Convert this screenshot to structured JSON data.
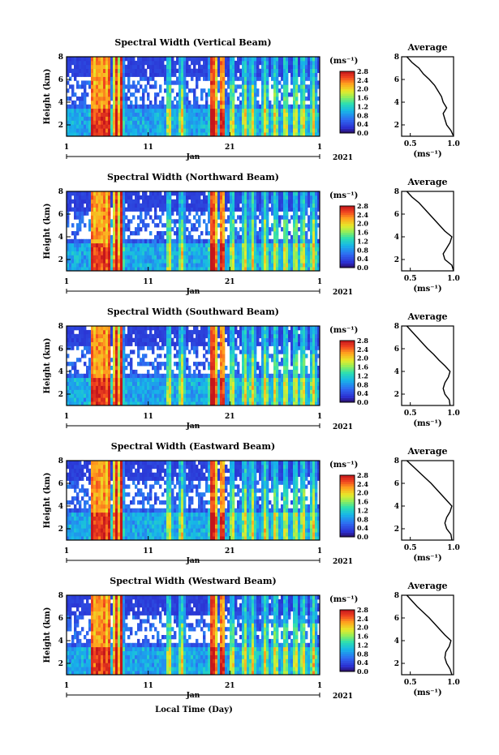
{
  "figure": {
    "xlabel": "Local Time (Day)"
  },
  "chart_data": [
    {
      "type": "heatmap",
      "title": "Spectral Width (Vertical Beam)",
      "ylabel": "Height (km)",
      "ylim": [
        1,
        8
      ],
      "yticks": [
        2,
        4,
        6,
        8
      ],
      "xticks": [
        "1",
        "11",
        "21",
        "1"
      ],
      "month_label": "Jan",
      "year_label": "2021",
      "colorbar": {
        "unit": "(ms⁻¹)",
        "min": 0.0,
        "max": 2.8,
        "ticks": [
          "0.0",
          "0.4",
          "0.8",
          "1.2",
          "1.6",
          "2.0",
          "2.4",
          "2.8"
        ]
      },
      "average": {
        "title": "Average",
        "xlim": [
          0.4,
          1.0
        ],
        "xticks": [
          "0.5",
          "1.0"
        ],
        "xlabel": "(ms⁻¹)",
        "yticks": [
          "2",
          "4",
          "6",
          "8"
        ],
        "heights": [
          1.0,
          1.5,
          2.0,
          2.5,
          3.0,
          3.5,
          4.0,
          4.5,
          5.0,
          5.5,
          6.0,
          6.5,
          7.0,
          7.5,
          8.0
        ],
        "values": [
          1.0,
          0.97,
          0.92,
          0.9,
          0.88,
          0.92,
          0.88,
          0.86,
          0.82,
          0.78,
          0.72,
          0.65,
          0.6,
          0.52,
          0.46
        ]
      }
    },
    {
      "type": "heatmap",
      "title": "Spectral Width (Northward Beam)",
      "ylabel": "Height (km)",
      "ylim": [
        1,
        8
      ],
      "yticks": [
        2,
        4,
        6,
        8
      ],
      "xticks": [
        "1",
        "11",
        "21",
        "1"
      ],
      "month_label": "Jan",
      "year_label": "2021",
      "colorbar": {
        "unit": "(ms⁻¹)",
        "min": 0.0,
        "max": 2.8,
        "ticks": [
          "0.0",
          "0.4",
          "0.8",
          "1.2",
          "1.6",
          "2.0",
          "2.4",
          "2.8"
        ]
      },
      "average": {
        "title": "Average",
        "xlim": [
          0.4,
          1.0
        ],
        "xticks": [
          "0.5",
          "1.0"
        ],
        "xlabel": "(ms⁻¹)",
        "yticks": [
          "2",
          "4",
          "6",
          "8"
        ],
        "heights": [
          1.0,
          1.5,
          2.0,
          2.5,
          3.0,
          3.5,
          4.0,
          4.5,
          5.0,
          5.5,
          6.0,
          6.5,
          7.0,
          7.5,
          8.0
        ],
        "values": [
          1.0,
          0.98,
          0.9,
          0.88,
          0.92,
          0.96,
          0.98,
          0.9,
          0.84,
          0.78,
          0.72,
          0.66,
          0.6,
          0.52,
          0.46
        ]
      }
    },
    {
      "type": "heatmap",
      "title": "Spectral Width (Southward Beam)",
      "ylabel": "Height (km)",
      "ylim": [
        1,
        8
      ],
      "yticks": [
        2,
        4,
        6,
        8
      ],
      "xticks": [
        "1",
        "11",
        "21",
        "1"
      ],
      "month_label": "Jan",
      "year_label": "2021",
      "colorbar": {
        "unit": "(ms⁻¹)",
        "min": 0.0,
        "max": 2.8,
        "ticks": [
          "0.0",
          "0.4",
          "0.8",
          "1.2",
          "1.6",
          "2.0",
          "2.4",
          "2.8"
        ]
      },
      "average": {
        "title": "Average",
        "xlim": [
          0.4,
          1.0
        ],
        "xticks": [
          "0.5",
          "1.0"
        ],
        "xlabel": "(ms⁻¹)",
        "yticks": [
          "2",
          "4",
          "6",
          "8"
        ],
        "heights": [
          1.0,
          1.5,
          2.0,
          2.5,
          3.0,
          3.5,
          4.0,
          4.5,
          5.0,
          5.5,
          6.0,
          6.5,
          7.0,
          7.5,
          8.0
        ],
        "values": [
          0.96,
          0.95,
          0.9,
          0.88,
          0.9,
          0.94,
          0.96,
          0.9,
          0.83,
          0.77,
          0.7,
          0.64,
          0.58,
          0.52,
          0.46
        ]
      }
    },
    {
      "type": "heatmap",
      "title": "Spectral Width (Eastward Beam)",
      "ylabel": "Height (km)",
      "ylim": [
        1,
        8
      ],
      "yticks": [
        2,
        4,
        6,
        8
      ],
      "xticks": [
        "1",
        "11",
        "21",
        "1"
      ],
      "month_label": "Jan",
      "year_label": "2021",
      "colorbar": {
        "unit": "(ms⁻¹)",
        "min": 0.0,
        "max": 2.8,
        "ticks": [
          "0.0",
          "0.4",
          "0.8",
          "1.2",
          "1.6",
          "2.0",
          "2.4",
          "2.8"
        ]
      },
      "average": {
        "title": "Average",
        "xlim": [
          0.4,
          1.0
        ],
        "xticks": [
          "0.5",
          "1.0"
        ],
        "xlabel": "(ms⁻¹)",
        "yticks": [
          "2",
          "4",
          "6",
          "8"
        ],
        "heights": [
          1.0,
          1.5,
          2.0,
          2.5,
          3.0,
          3.5,
          4.0,
          4.5,
          5.0,
          5.5,
          6.0,
          6.5,
          7.0,
          7.5,
          8.0
        ],
        "values": [
          0.98,
          0.97,
          0.92,
          0.9,
          0.92,
          0.96,
          0.98,
          0.92,
          0.86,
          0.8,
          0.74,
          0.67,
          0.6,
          0.53,
          0.46
        ]
      }
    },
    {
      "type": "heatmap",
      "title": "Spectral Width (Westward Beam)",
      "ylabel": "Height (km)",
      "ylim": [
        1,
        8
      ],
      "yticks": [
        2,
        4,
        6,
        8
      ],
      "xticks": [
        "1",
        "11",
        "21",
        "1"
      ],
      "month_label": "Jan",
      "year_label": "2021",
      "colorbar": {
        "unit": "(ms⁻¹)",
        "min": 0.0,
        "max": 2.8,
        "ticks": [
          "0.0",
          "0.4",
          "0.8",
          "1.2",
          "1.6",
          "2.0",
          "2.4",
          "2.8"
        ]
      },
      "average": {
        "title": "Average",
        "xlim": [
          0.4,
          1.0
        ],
        "xticks": [
          "0.5",
          "1.0"
        ],
        "xlabel": "(ms⁻¹)",
        "yticks": [
          "2",
          "4",
          "6",
          "8"
        ],
        "heights": [
          1.0,
          1.5,
          2.0,
          2.5,
          3.0,
          3.5,
          4.0,
          4.5,
          5.0,
          5.5,
          6.0,
          6.5,
          7.0,
          7.5,
          8.0
        ],
        "values": [
          0.98,
          0.96,
          0.92,
          0.9,
          0.91,
          0.95,
          0.97,
          0.9,
          0.84,
          0.78,
          0.72,
          0.65,
          0.58,
          0.52,
          0.46
        ]
      }
    }
  ]
}
